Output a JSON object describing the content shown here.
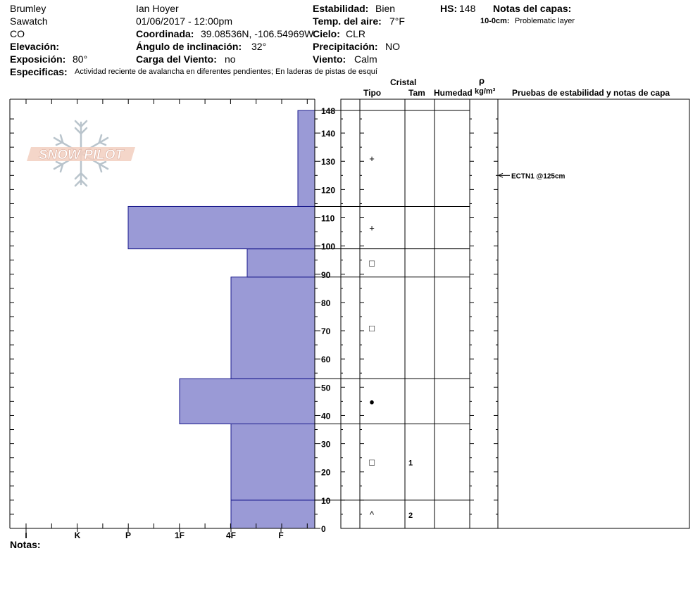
{
  "header": {
    "location": "Brumley",
    "range": "Sawatch",
    "state": "CO",
    "elevation_label": "Elevación:",
    "elevation_value": "",
    "aspect_label": "Exposición:",
    "aspect_value": "80°",
    "observer": "Ian Hoyer",
    "datetime": "01/06/2017 - 12:00pm",
    "coord_label": "Coordinada:",
    "coord_value": "39.08536N, -106.54969W",
    "slope_label": "Ángulo de inclinación:",
    "slope_value": "32°",
    "windload_label": "Carga del Viento:",
    "windload_value": "no",
    "stability_label": "Estabilidad:",
    "stability_value": "Bien",
    "airtemp_label": "Temp. del aire:",
    "airtemp_value": "7°F",
    "sky_label": "Cielo:",
    "sky_value": "CLR",
    "precip_label": "Precipitación:",
    "precip_value": "NO",
    "wind_label": "Viento:",
    "wind_value": "Calm",
    "hs_label": "HS:",
    "hs_value": "148",
    "layer_notes_label": "Notas del capas:",
    "layer_note_range": "10-0cm:",
    "layer_note_text": "Problematic layer",
    "specifics_label": "Especificas:",
    "specifics_text": "Actividad reciente de avalancha en diferentes pendientes;  En laderas de pistas de esquí"
  },
  "logo_text": "SNOW PILOT",
  "table_headers": {
    "crystal": "Cristal",
    "type": "Tipo",
    "size": "Tam",
    "moisture": "Humedad",
    "rho": "ρ",
    "density_unit": "kg/m³",
    "tests": "Pruebas de estabilidad y notas de capa"
  },
  "notes_label": "Notas:",
  "colors": {
    "hardness_fill": "#9a9ad6",
    "hardness_stroke": "#1a1a8c"
  },
  "chart_data": {
    "type": "bar",
    "orientation": "horizontal-profile",
    "x_categories": [
      "I",
      "K",
      "P",
      "1F",
      "4F",
      "F"
    ],
    "x_direction": "reversed",
    "ylim": [
      0,
      148
    ],
    "y_ticks": [
      0,
      10,
      20,
      30,
      40,
      50,
      60,
      70,
      80,
      90,
      100,
      110,
      120,
      130,
      140,
      148
    ],
    "layers": [
      {
        "bottom": 0,
        "top": 10,
        "hardness": "4F",
        "grain": "^",
        "size": "2"
      },
      {
        "bottom": 10,
        "top": 37,
        "hardness": "4F",
        "grain": "□",
        "size": "1"
      },
      {
        "bottom": 37,
        "top": 53,
        "hardness": "1F",
        "grain": "●",
        "size": ""
      },
      {
        "bottom": 53,
        "top": 89,
        "hardness": "4F",
        "grain": "□",
        "size": ""
      },
      {
        "bottom": 89,
        "top": 99,
        "hardness": "4F-P",
        "grain": "□",
        "size": ""
      },
      {
        "bottom": 99,
        "top": 114,
        "hardness": "P",
        "grain": "+",
        "size": ""
      },
      {
        "bottom": 114,
        "top": 148,
        "hardness": "F",
        "grain": "+",
        "size": ""
      }
    ],
    "tests": [
      {
        "depth": 125,
        "label": "ECTN1 @125cm"
      }
    ]
  }
}
